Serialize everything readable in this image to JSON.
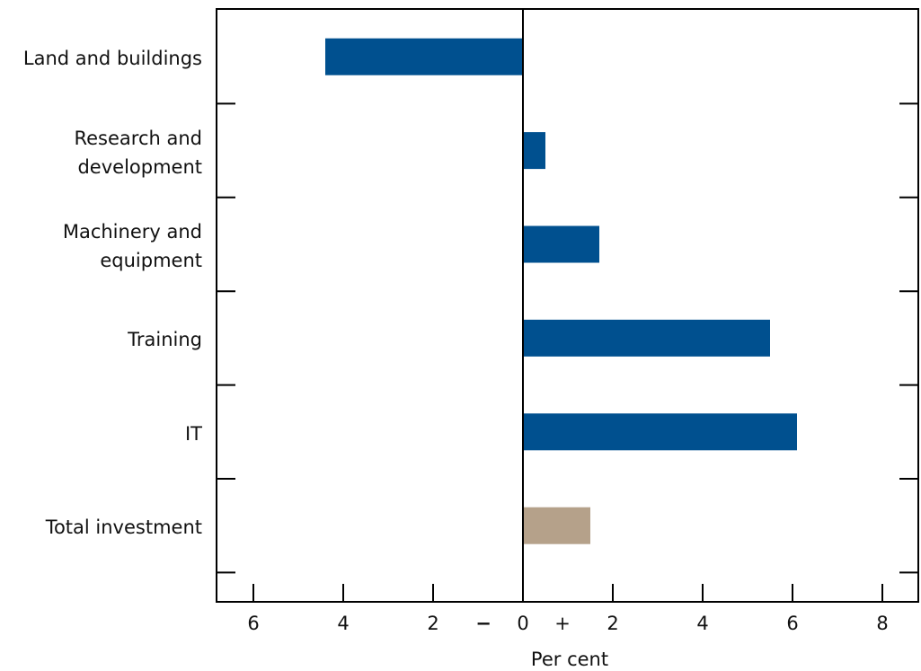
{
  "chart_data": {
    "type": "hbar",
    "categories": [
      "Land and buildings",
      "Research and\ndevelopment",
      "Machinery and\nequipment",
      "Training",
      "IT",
      "Total investment"
    ],
    "values": [
      -4.4,
      0.5,
      1.7,
      5.5,
      6.1,
      1.5
    ],
    "colors": [
      "#00508f",
      "#00508f",
      "#00508f",
      "#00508f",
      "#00508f",
      "#b5a18a"
    ],
    "xlim": [
      -6.82,
      8.8
    ],
    "xticks": [
      {
        "value": -6,
        "label": "6"
      },
      {
        "value": -4,
        "label": "4"
      },
      {
        "value": -2,
        "label": "2"
      },
      0,
      2,
      4,
      6,
      8
    ],
    "negative_sign": "−",
    "positive_sign": "+",
    "xlabel": "Per cent"
  }
}
